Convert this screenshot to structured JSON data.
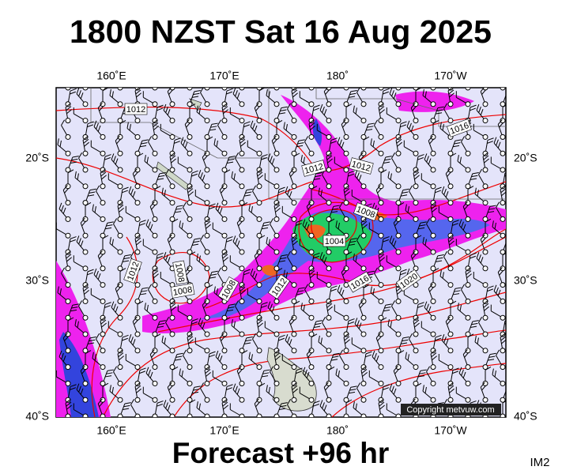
{
  "header": {
    "title": "1800 NZST Sat 16 Aug 2025"
  },
  "map": {
    "lon_labels_top": [
      "160˚E",
      "170˚E",
      "180˚",
      "170˚W"
    ],
    "lon_labels_bottom": [
      "160˚E",
      "170˚E",
      "180˚",
      "170˚W"
    ],
    "lat_labels_left": [
      "20˚S",
      "30˚S",
      "40˚S"
    ],
    "lat_labels_right": [
      "20˚S",
      "30˚S",
      "40˚S"
    ],
    "isobar_labels": [
      "1012",
      "1012",
      "1012",
      "1008",
      "1004",
      "1016",
      "1012",
      "1008",
      "1008",
      "1008",
      "1012",
      "1016",
      "1020"
    ],
    "copyright": "Copyright metvuw.com"
  },
  "footer": {
    "forecast": "Forecast +96 hr",
    "id": "IM2"
  }
}
